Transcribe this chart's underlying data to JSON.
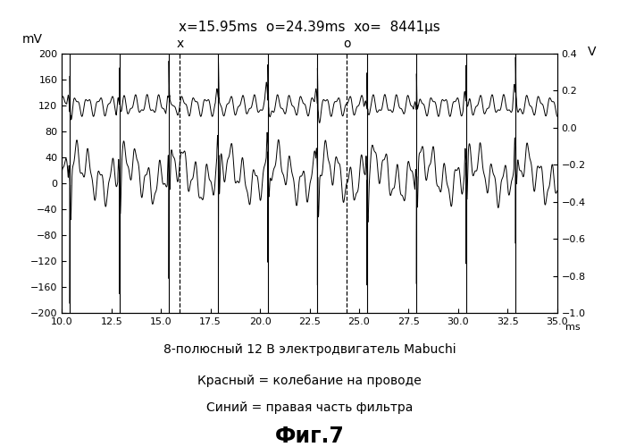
{
  "title": "x=15.95ms  o=24.39ms  xo=  8441μs",
  "xlabel_unit": "ms",
  "ylabel_left": "mV",
  "ylabel_right": "V",
  "xlim": [
    10.0,
    35.0
  ],
  "ylim_left": [
    -200,
    200
  ],
  "ylim_right": [
    -1.0,
    0.4
  ],
  "xticks": [
    10.0,
    12.5,
    15.0,
    17.5,
    20.0,
    22.5,
    25.0,
    27.5,
    30.0,
    32.5,
    35.0
  ],
  "yticks_left": [
    -200,
    -160,
    -120,
    -80,
    -40,
    0,
    40,
    80,
    120,
    160,
    200
  ],
  "yticks_right": [
    -1.0,
    -0.8,
    -0.6,
    -0.4,
    -0.2,
    0,
    0.2,
    0.4
  ],
  "x_marker": 15.95,
  "o_marker": 24.39,
  "spike_period": 2.5,
  "spike_start": 10.4,
  "vlines_dashed": [
    15.95,
    24.39
  ],
  "caption_line1": "8-полюсный 12 В электродвигатель Mabuchi",
  "caption_line2": "Красный = колебание на проводе",
  "caption_line3": "Синий = правая часть фильтра",
  "fig_label": "Фиг.7",
  "background_color": "#ffffff",
  "line_color": "#000000",
  "font_size_title": 11,
  "font_size_caption": 10,
  "font_size_fig": 17
}
